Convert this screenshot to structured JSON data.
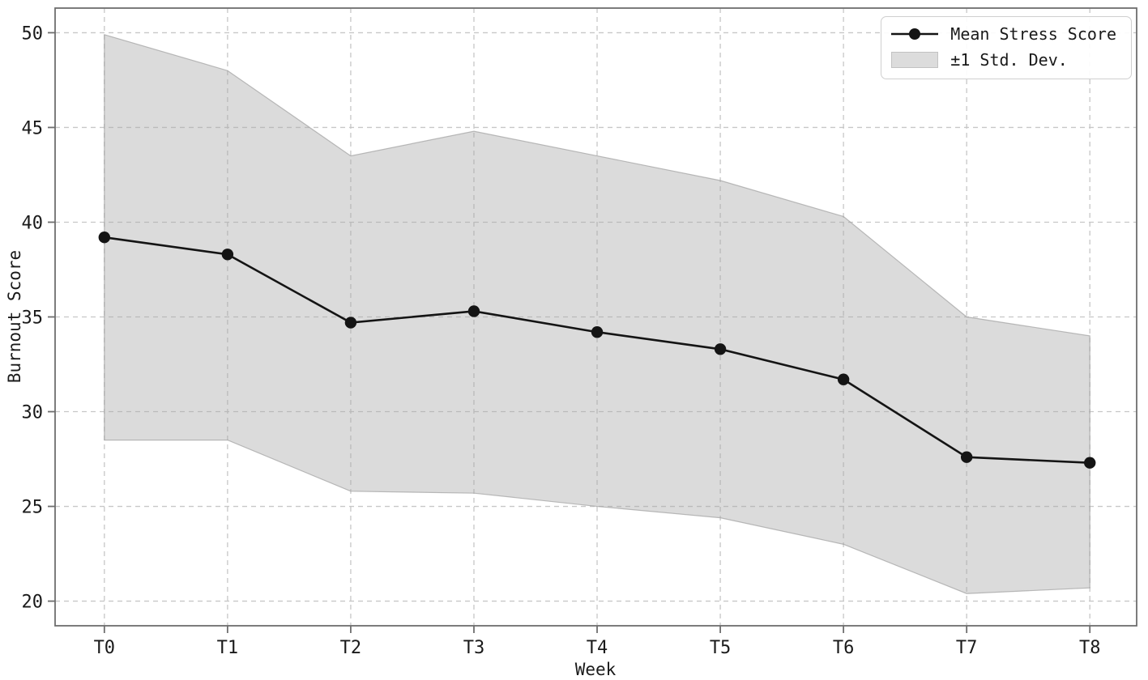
{
  "figure": {
    "background": "#ffffff"
  },
  "legend": {
    "position": "upper right",
    "items": [
      {
        "label": "Mean Stress Score",
        "swatch": "line-marker-icon",
        "color": "#1a1a1a"
      },
      {
        "label": "±1 Std. Dev.",
        "swatch": "patch-icon",
        "color": "#dcdcdc"
      }
    ]
  },
  "chart_data": {
    "type": "line",
    "title": "",
    "xlabel": "Week",
    "ylabel": "Burnout Score",
    "categories": [
      "T0",
      "T1",
      "T2",
      "T3",
      "T4",
      "T5",
      "T6",
      "T7",
      "T8"
    ],
    "series": [
      {
        "name": "Mean Stress Score",
        "role": "mean",
        "values": [
          39.2,
          38.3,
          34.7,
          35.3,
          34.2,
          33.3,
          31.7,
          27.6,
          27.3
        ]
      },
      {
        "name": "+1 Std. Dev. (band upper)",
        "role": "band_upper",
        "values": [
          49.9,
          48.0,
          43.5,
          44.8,
          43.5,
          42.2,
          40.3,
          35.0,
          34.0
        ]
      },
      {
        "name": "-1 Std. Dev. (band lower)",
        "role": "band_lower",
        "values": [
          28.5,
          28.5,
          25.8,
          25.7,
          25.0,
          24.4,
          23.0,
          20.4,
          20.7
        ]
      }
    ],
    "yticks": [
      20,
      25,
      30,
      35,
      40,
      45,
      50
    ],
    "xlim": [
      -0.4,
      8.38
    ],
    "ylim": [
      18.7,
      51.3
    ],
    "grid": true,
    "grid_style": "dashed",
    "legend_position": "upper right",
    "colors": {
      "line": "#141414",
      "band": "#a9a9a9",
      "band_edge": "#a0a0a0",
      "grid": "#c7c7c7",
      "spine": "#6e6e6e",
      "text": "#1a1a1a",
      "background": "#ffffff"
    }
  }
}
